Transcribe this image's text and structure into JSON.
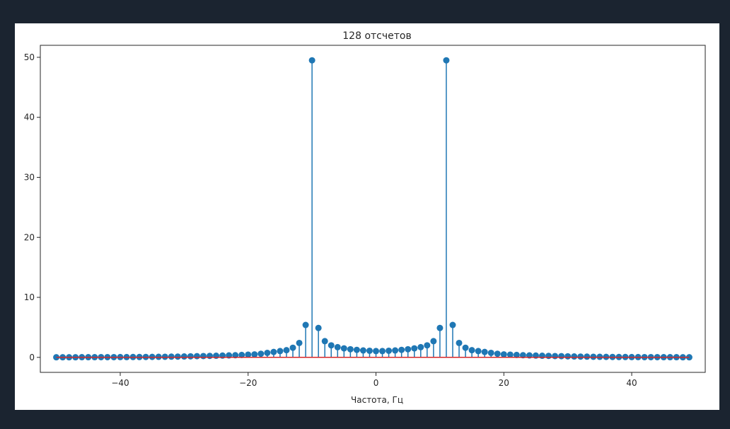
{
  "chart_data": {
    "type": "stem",
    "title": "128 отсчетов",
    "xlabel": "Частота, Гц",
    "ylabel": "",
    "xlim": [
      -52.5,
      51.5
    ],
    "ylim": [
      -2.5,
      52
    ],
    "xticks": [
      -40,
      -20,
      0,
      20,
      40
    ],
    "xtick_labels": [
      "−40",
      "−20",
      "0",
      "20",
      "40"
    ],
    "yticks": [
      0,
      10,
      20,
      30,
      40,
      50
    ],
    "ytick_labels": [
      "0",
      "10",
      "20",
      "30",
      "40",
      "50"
    ],
    "grid": false,
    "legend": false,
    "x": [
      -50,
      -49,
      -48,
      -47,
      -46,
      -45,
      -44,
      -43,
      -42,
      -41,
      -40,
      -39,
      -38,
      -37,
      -36,
      -35,
      -34,
      -33,
      -32,
      -31,
      -30,
      -29,
      -28,
      -27,
      -26,
      -25,
      -24,
      -23,
      -22,
      -21,
      -20,
      -19,
      -18,
      -17,
      -16,
      -15,
      -14,
      -13,
      -12,
      -11,
      -10,
      -9,
      -8,
      -7,
      -6,
      -5,
      -4,
      -3,
      -2,
      -1,
      0,
      1,
      2,
      3,
      4,
      5,
      6,
      7,
      8,
      9,
      10,
      11,
      12,
      13,
      14,
      15,
      16,
      17,
      18,
      19,
      20,
      21,
      22,
      23,
      24,
      25,
      26,
      27,
      28,
      29,
      30,
      31,
      32,
      33,
      34,
      35,
      36,
      37,
      38,
      39,
      40,
      41,
      42,
      43,
      44,
      45,
      46,
      47,
      48,
      49
    ],
    "y": [
      0.02,
      0.02,
      0.02,
      0.02,
      0.03,
      0.03,
      0.03,
      0.04,
      0.04,
      0.04,
      0.05,
      0.05,
      0.06,
      0.06,
      0.07,
      0.08,
      0.09,
      0.1,
      0.12,
      0.13,
      0.15,
      0.17,
      0.2,
      0.22,
      0.25,
      0.27,
      0.3,
      0.33,
      0.36,
      0.4,
      0.45,
      0.5,
      0.6,
      0.75,
      0.9,
      1.05,
      1.2,
      1.6,
      2.4,
      5.4,
      49.5,
      4.9,
      2.7,
      2.0,
      1.7,
      1.5,
      1.35,
      1.25,
      1.15,
      1.1,
      1.05,
      1.05,
      1.1,
      1.15,
      1.25,
      1.35,
      1.5,
      1.7,
      2.0,
      2.7,
      4.9,
      49.5,
      5.4,
      2.4,
      1.6,
      1.2,
      1.05,
      0.9,
      0.75,
      0.6,
      0.5,
      0.45,
      0.4,
      0.36,
      0.33,
      0.3,
      0.27,
      0.25,
      0.22,
      0.2,
      0.17,
      0.15,
      0.13,
      0.12,
      0.1,
      0.09,
      0.08,
      0.07,
      0.06,
      0.06,
      0.05,
      0.05,
      0.04,
      0.04,
      0.04,
      0.03,
      0.03,
      0.03,
      0.02,
      0.02
    ],
    "colors": {
      "stem": "#1f77b4",
      "marker": "#1f77b4",
      "baseline": "#d62728",
      "axes": "#262626"
    }
  }
}
